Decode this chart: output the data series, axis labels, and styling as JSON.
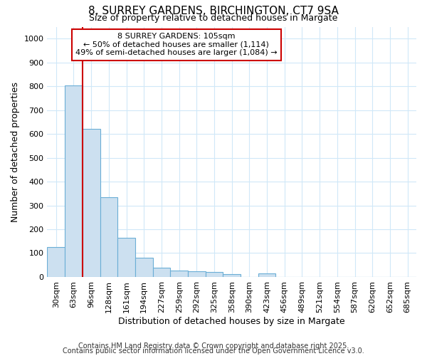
{
  "title": "8, SURREY GARDENS, BIRCHINGTON, CT7 9SA",
  "subtitle": "Size of property relative to detached houses in Margate",
  "xlabel": "Distribution of detached houses by size in Margate",
  "ylabel": "Number of detached properties",
  "categories": [
    "30sqm",
    "63sqm",
    "96sqm",
    "128sqm",
    "161sqm",
    "194sqm",
    "227sqm",
    "259sqm",
    "292sqm",
    "325sqm",
    "358sqm",
    "390sqm",
    "423sqm",
    "456sqm",
    "489sqm",
    "521sqm",
    "554sqm",
    "587sqm",
    "620sqm",
    "652sqm",
    "685sqm"
  ],
  "values": [
    125,
    805,
    620,
    335,
    165,
    82,
    40,
    28,
    25,
    20,
    13,
    0,
    15,
    0,
    0,
    0,
    0,
    0,
    0,
    0,
    0
  ],
  "bar_color": "#cce0f0",
  "bar_edge_color": "#6baed6",
  "red_line_index": 2,
  "red_line_color": "#cc0000",
  "ylim": [
    0,
    1050
  ],
  "yticks": [
    0,
    100,
    200,
    300,
    400,
    500,
    600,
    700,
    800,
    900,
    1000
  ],
  "annotation_line1": "8 SURREY GARDENS: 105sqm",
  "annotation_line2": "← 50% of detached houses are smaller (1,114)",
  "annotation_line3": "49% of semi-detached houses are larger (1,084) →",
  "annotation_box_color": "#cc0000",
  "annotation_box_facecolor": "white",
  "footer_line1": "Contains HM Land Registry data © Crown copyright and database right 2025.",
  "footer_line2": "Contains public sector information licensed under the Open Government Licence v3.0.",
  "background_color": "#ffffff",
  "grid_color": "#d0e8f8",
  "title_fontsize": 11,
  "subtitle_fontsize": 9,
  "axis_label_fontsize": 9,
  "tick_fontsize": 8,
  "annotation_fontsize": 8,
  "footer_fontsize": 7
}
